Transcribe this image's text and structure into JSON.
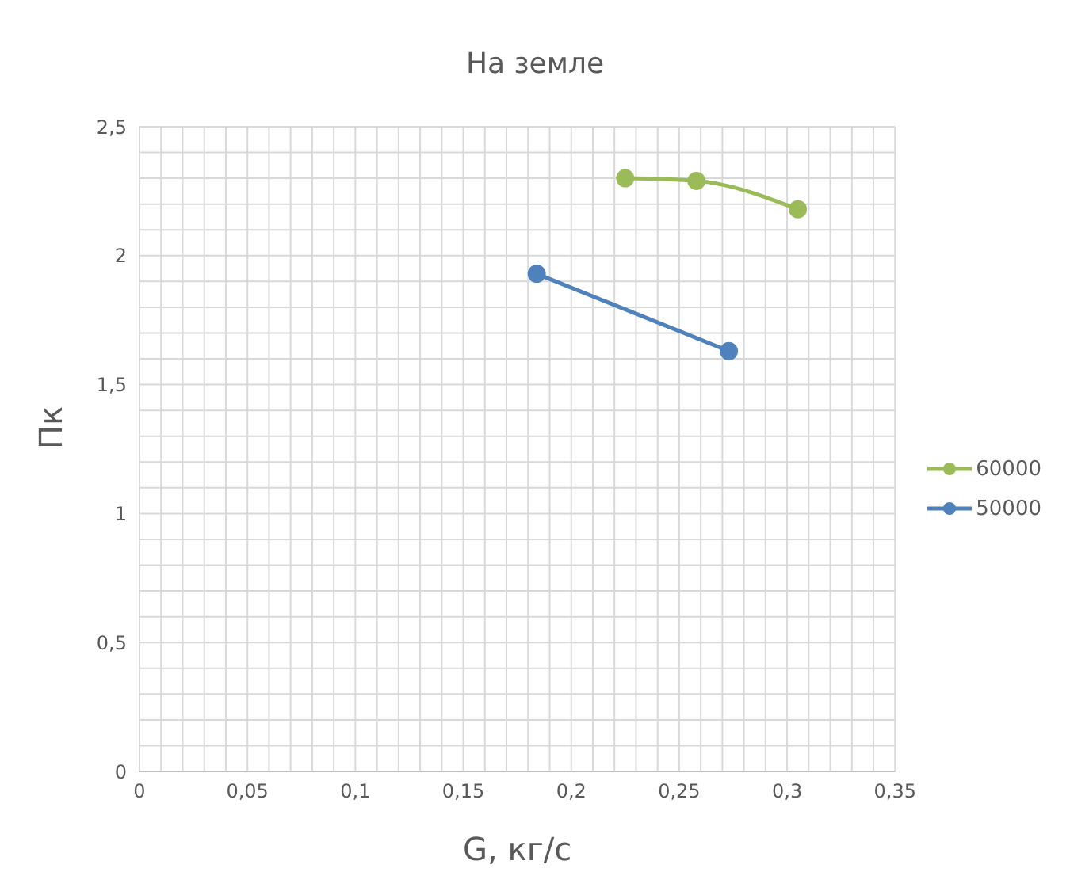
{
  "chart_data": {
    "type": "line",
    "title": "На земле",
    "xlabel": "G, кг/с",
    "ylabel": "Пк",
    "xlim": [
      0,
      0.35
    ],
    "xticks": [
      0,
      {
        "value": 0.01,
        "label": null
      },
      {
        "value": 0.02,
        "label": null
      },
      {
        "value": 0.03,
        "label": null
      },
      {
        "value": 0.04,
        "label": null
      },
      {
        "value": 0.05,
        "label": "0,05"
      },
      {
        "value": 0.06,
        "label": null
      },
      {
        "value": 0.07,
        "label": null
      },
      {
        "value": 0.08,
        "label": null
      },
      {
        "value": 0.09,
        "label": null
      },
      {
        "value": 0.1,
        "label": "0,1"
      },
      {
        "value": 0.11,
        "label": null
      },
      {
        "value": 0.12,
        "label": null
      },
      {
        "value": 0.13,
        "label": null
      },
      {
        "value": 0.14,
        "label": null
      },
      {
        "value": 0.15,
        "label": "0,15"
      },
      {
        "value": 0.16,
        "label": null
      },
      {
        "value": 0.17,
        "label": null
      },
      {
        "value": 0.18,
        "label": null
      },
      {
        "value": 0.19,
        "label": null
      },
      {
        "value": 0.2,
        "label": "0,2"
      },
      {
        "value": 0.21,
        "label": null
      },
      {
        "value": 0.22,
        "label": null
      },
      {
        "value": 0.23,
        "label": null
      },
      {
        "value": 0.24,
        "label": null
      },
      {
        "value": 0.25,
        "label": "0,25"
      },
      {
        "value": 0.26,
        "label": null
      },
      {
        "value": 0.27,
        "label": null
      },
      {
        "value": 0.28,
        "label": null
      },
      {
        "value": 0.29,
        "label": null
      },
      {
        "value": 0.3,
        "label": "0,3"
      },
      {
        "value": 0.31,
        "label": null
      },
      {
        "value": 0.32,
        "label": null
      },
      {
        "value": 0.33,
        "label": null
      },
      {
        "value": 0.34,
        "label": null
      },
      {
        "value": 0.35,
        "label": "0,35"
      }
    ],
    "ylim": [
      0,
      2.5
    ],
    "yticks": [
      0,
      {
        "value": 0.1,
        "label": null
      },
      {
        "value": 0.2,
        "label": null
      },
      {
        "value": 0.3,
        "label": null
      },
      {
        "value": 0.4,
        "label": null
      },
      {
        "value": 0.5,
        "label": "0,5"
      },
      {
        "value": 0.6,
        "label": null
      },
      {
        "value": 0.7,
        "label": null
      },
      {
        "value": 0.8,
        "label": null
      },
      {
        "value": 0.9,
        "label": null
      },
      1,
      {
        "value": 1.1,
        "label": null
      },
      {
        "value": 1.2,
        "label": null
      },
      {
        "value": 1.3,
        "label": null
      },
      {
        "value": 1.4,
        "label": null
      },
      {
        "value": 1.5,
        "label": "1,5"
      },
      {
        "value": 1.6,
        "label": null
      },
      {
        "value": 1.7,
        "label": null
      },
      {
        "value": 1.8,
        "label": null
      },
      {
        "value": 1.9,
        "label": null
      },
      2,
      {
        "value": 2.1,
        "label": null
      },
      {
        "value": 2.2,
        "label": null
      },
      {
        "value": 2.3,
        "label": null
      },
      {
        "value": 2.4,
        "label": null
      },
      {
        "value": 2.5,
        "label": "2,5"
      }
    ],
    "grid": true,
    "legend": "right",
    "marker": "circle",
    "series": [
      {
        "name": "60000",
        "color": "#9bbb59",
        "x": [
          0.225,
          0.258,
          0.305
        ],
        "values": [
          2.3,
          2.29,
          2.18
        ]
      },
      {
        "name": "50000",
        "color": "#4f81bd",
        "x": [
          0.184,
          0.273
        ],
        "values": [
          1.93,
          1.63
        ]
      }
    ]
  }
}
